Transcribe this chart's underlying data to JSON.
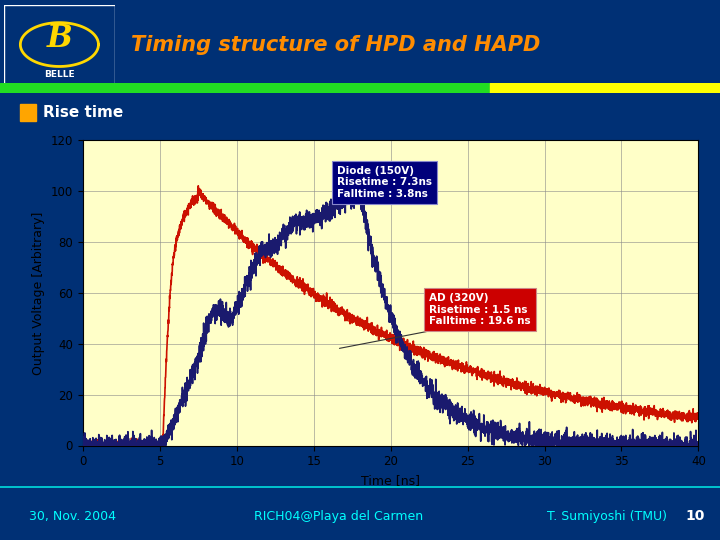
{
  "title": "Timing structure of HPD and HAPD",
  "slide_bg": "#003075",
  "header_bg": "#003075",
  "plot_bg": "#FFFFC8",
  "footer_bg": "#002080",
  "xlabel": "Time [ns]",
  "ylabel": "Output Voltage [Arbitrary]",
  "xlim": [
    0,
    40
  ],
  "ylim": [
    0,
    120
  ],
  "xticks": [
    0,
    5,
    10,
    15,
    20,
    25,
    30,
    35,
    40
  ],
  "yticks": [
    0,
    20,
    40,
    60,
    80,
    100,
    120
  ],
  "subtitle": "Rise time",
  "diode_label": "Diode (150V)\nRisetime : 7.3ns\nFalltime : 3.8ns",
  "ad_label": "AD (320V)\nRisetime : 1.5 ns\nFalltime : 19.6 ns",
  "diode_box_color": "#00007A",
  "ad_box_color": "#CC0000",
  "diode_line_color": "#1a1a6e",
  "ad_line_color": "#CC1100",
  "footer_left": "30, Nov. 2004",
  "footer_center": "RICH04@Playa del Carmen",
  "footer_right": "T. Sumiyoshi (TMU)",
  "footer_page": "10",
  "title_color": "#FF8C00",
  "subtitle_bullet_color": "#FFA500",
  "subtitle_text_color": "#FFFFFF",
  "footer_text_color": "#00FFFF"
}
